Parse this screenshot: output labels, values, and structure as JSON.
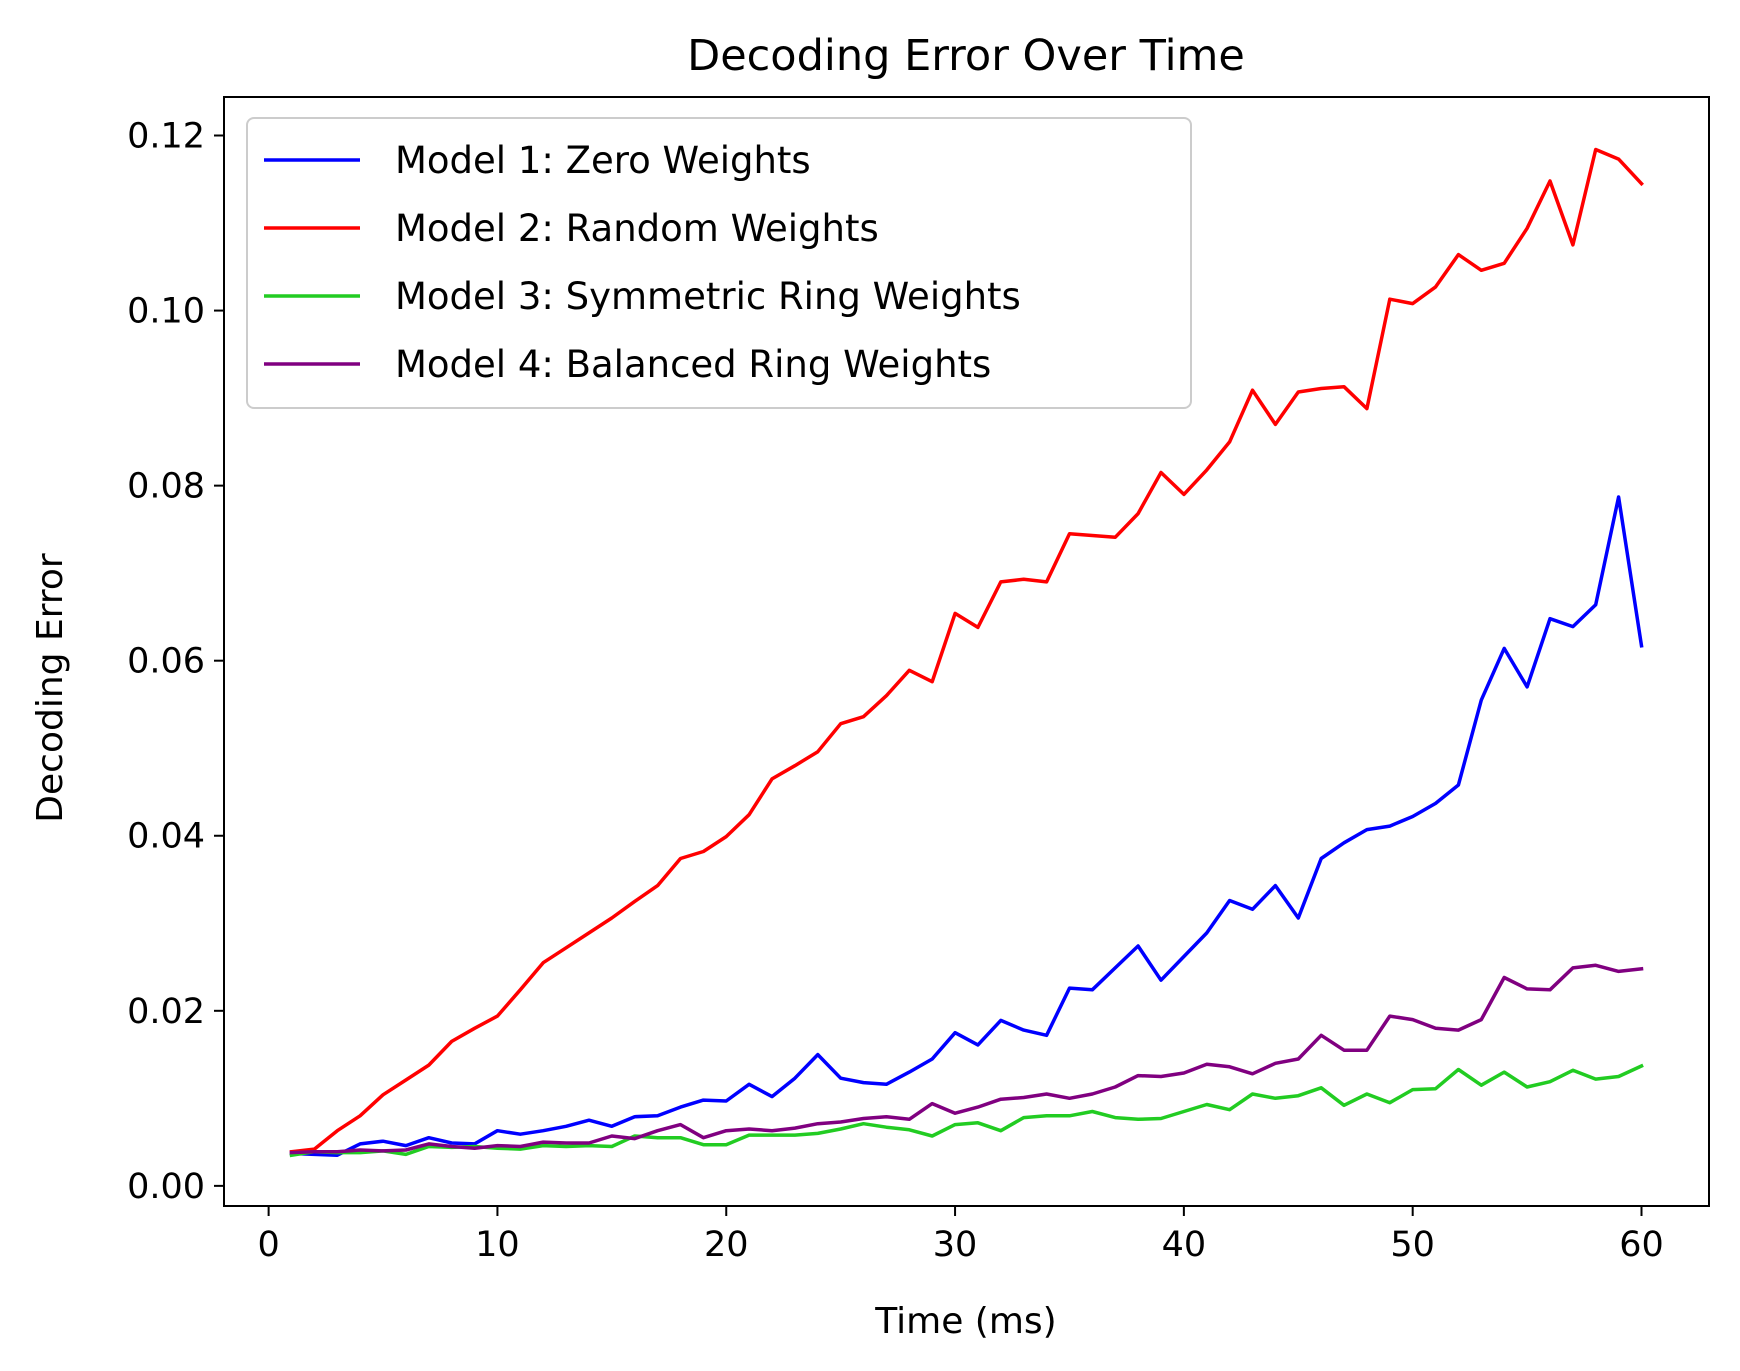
{
  "chart_data": {
    "type": "line",
    "title": "Decoding Error Over Time",
    "xlabel": "Time (ms)",
    "ylabel": "Decoding Error",
    "xlim": [
      -1.95,
      62.95
    ],
    "ylim": [
      -0.0023,
      0.1244
    ],
    "xticks": [
      0,
      10,
      20,
      30,
      40,
      50,
      60
    ],
    "xtick_labels": [
      "0",
      "10",
      "20",
      "30",
      "40",
      "50",
      "60"
    ],
    "yticks": [
      0.0,
      0.02,
      0.04,
      0.06,
      0.08,
      0.1,
      0.12
    ],
    "ytick_labels": [
      "0.00",
      "0.02",
      "0.04",
      "0.06",
      "0.08",
      "0.10",
      "0.12"
    ],
    "grid": false,
    "legend_position": "upper-left",
    "x": [
      1,
      2,
      3,
      4,
      5,
      6,
      7,
      8,
      9,
      10,
      11,
      12,
      13,
      14,
      15,
      16,
      17,
      18,
      19,
      20,
      21,
      22,
      23,
      24,
      25,
      26,
      27,
      28,
      29,
      30,
      31,
      32,
      33,
      34,
      35,
      36,
      37,
      38,
      39,
      40,
      41,
      42,
      43,
      44,
      45,
      46,
      47,
      48,
      49,
      50,
      51,
      52,
      53,
      54,
      55,
      56,
      57,
      58,
      59,
      60
    ],
    "series": [
      {
        "name": "Model 1: Zero Weights",
        "color": "#0000ff",
        "values": [
          0.0037,
          0.0036,
          0.0035,
          0.0048,
          0.0051,
          0.0046,
          0.0055,
          0.0049,
          0.0048,
          0.0063,
          0.0059,
          0.0063,
          0.0068,
          0.0075,
          0.0068,
          0.0079,
          0.008,
          0.009,
          0.0098,
          0.0097,
          0.0116,
          0.0102,
          0.0123,
          0.015,
          0.0123,
          0.0118,
          0.0116,
          0.013,
          0.0145,
          0.0175,
          0.0161,
          0.0189,
          0.0178,
          0.0172,
          0.0226,
          0.0224,
          0.0249,
          0.0274,
          0.0235,
          0.0262,
          0.0289,
          0.0326,
          0.0316,
          0.0343,
          0.0306,
          0.0374,
          0.0392,
          0.0407,
          0.0411,
          0.0422,
          0.0437,
          0.0458,
          0.0555,
          0.0614,
          0.057,
          0.0648,
          0.0639,
          0.0664,
          0.0787,
          0.0617
        ]
      },
      {
        "name": "Model 2: Random Weights",
        "color": "#ff0000",
        "values": [
          0.0039,
          0.0042,
          0.0063,
          0.008,
          0.0104,
          0.0121,
          0.0138,
          0.0165,
          0.018,
          0.0194,
          0.0224,
          0.0255,
          0.0272,
          0.0289,
          0.0306,
          0.0325,
          0.0343,
          0.0374,
          0.0382,
          0.0399,
          0.0424,
          0.0465,
          0.048,
          0.0496,
          0.0528,
          0.0536,
          0.056,
          0.0589,
          0.0576,
          0.0654,
          0.0638,
          0.069,
          0.0693,
          0.069,
          0.0745,
          0.0743,
          0.0741,
          0.0768,
          0.0815,
          0.079,
          0.0818,
          0.085,
          0.0909,
          0.087,
          0.0907,
          0.0911,
          0.0913,
          0.0888,
          0.1013,
          0.1008,
          0.1027,
          0.1064,
          0.1046,
          0.1054,
          0.1094,
          0.1148,
          0.1075,
          0.1184,
          0.1173,
          0.1145
        ]
      },
      {
        "name": "Model 3: Symmetric Ring Weights",
        "color": "#22cc22",
        "values": [
          0.0035,
          0.0039,
          0.0038,
          0.0038,
          0.004,
          0.0036,
          0.0045,
          0.0044,
          0.0045,
          0.0043,
          0.0042,
          0.0046,
          0.0045,
          0.0046,
          0.0045,
          0.0057,
          0.0055,
          0.0055,
          0.0047,
          0.0047,
          0.0058,
          0.0058,
          0.0058,
          0.006,
          0.0065,
          0.0071,
          0.0067,
          0.0064,
          0.0057,
          0.007,
          0.0072,
          0.0063,
          0.0078,
          0.008,
          0.008,
          0.0085,
          0.0078,
          0.0076,
          0.0077,
          0.0085,
          0.0093,
          0.0087,
          0.0105,
          0.01,
          0.0103,
          0.0112,
          0.0092,
          0.0105,
          0.0095,
          0.011,
          0.0111,
          0.0133,
          0.0115,
          0.013,
          0.0113,
          0.0119,
          0.0132,
          0.0122,
          0.0125,
          0.0137
        ]
      },
      {
        "name": "Model 4: Balanced Ring Weights",
        "color": "#800080",
        "values": [
          0.0038,
          0.0039,
          0.0039,
          0.0041,
          0.004,
          0.0041,
          0.0048,
          0.0045,
          0.0043,
          0.0046,
          0.0045,
          0.005,
          0.0049,
          0.0049,
          0.0057,
          0.0054,
          0.0063,
          0.007,
          0.0055,
          0.0063,
          0.0065,
          0.0063,
          0.0066,
          0.0071,
          0.0073,
          0.0077,
          0.0079,
          0.0076,
          0.0094,
          0.0083,
          0.009,
          0.0099,
          0.0101,
          0.0105,
          0.01,
          0.0105,
          0.0113,
          0.0126,
          0.0125,
          0.0129,
          0.0139,
          0.0136,
          0.0128,
          0.014,
          0.0145,
          0.0172,
          0.0155,
          0.0155,
          0.0194,
          0.019,
          0.018,
          0.0178,
          0.019,
          0.0238,
          0.0225,
          0.0224,
          0.0249,
          0.0252,
          0.0245,
          0.0248
        ]
      }
    ]
  }
}
